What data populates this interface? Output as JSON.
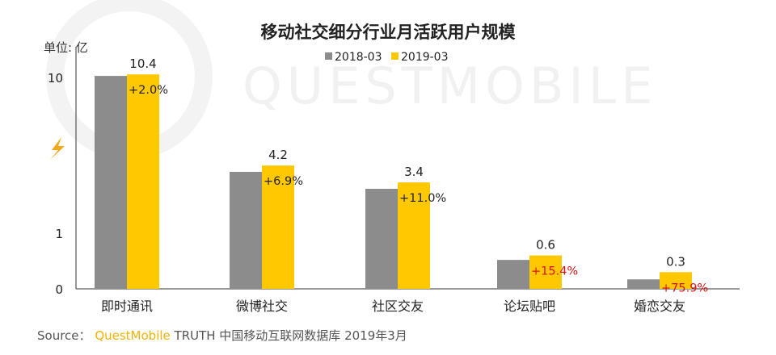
{
  "chart_data": {
    "type": "bar",
    "title": "移动社交细分行业月活跃用户规模",
    "unit_label": "单位: 亿",
    "categories": [
      "即时通讯",
      "微博社交",
      "社区交友",
      "论坛贴吧",
      "婚恋交友"
    ],
    "series": [
      {
        "name": "2018-03",
        "color": "#8c8c8c",
        "values": [
          10.2,
          3.9,
          3.1,
          0.52,
          0.17
        ]
      },
      {
        "name": "2019-03",
        "color": "#ffc800",
        "values": [
          10.4,
          4.2,
          3.4,
          0.6,
          0.3
        ]
      }
    ],
    "value_labels": [
      "10.4",
      "4.2",
      "3.4",
      "0.6",
      "0.3"
    ],
    "growth_labels": [
      "+2.0%",
      "+6.9%",
      "+11.0%",
      "+15.4%",
      "+75.9%"
    ],
    "growth_colors": [
      "#222222",
      "#222222",
      "#222222",
      "#e01010",
      "#e01010"
    ],
    "y_ticks": [
      "0",
      "1",
      "10"
    ],
    "axis_break": true,
    "legend_position": "top-center"
  },
  "watermark": "QUESTMOBILE",
  "source": {
    "prefix": "Source：",
    "brand": "QuestMobile",
    "suffix": " TRUTH 中国移动互联网数据库 2019年3月"
  }
}
